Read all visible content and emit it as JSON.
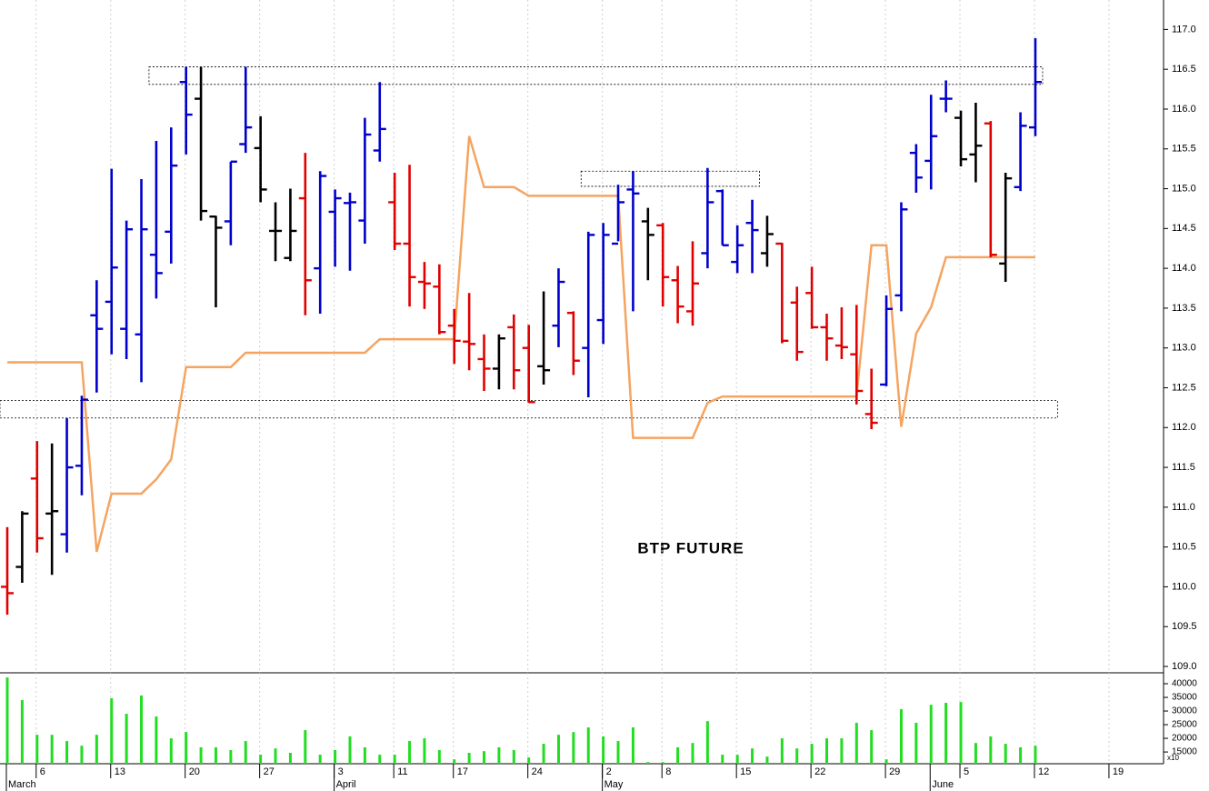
{
  "chart_data": {
    "type": "ohlc",
    "annotation": "BTP FUTURE",
    "grid": "x",
    "categories": [
      null,
      null,
      "6",
      null,
      null,
      null,
      null,
      "13",
      null,
      null,
      null,
      null,
      "20",
      null,
      null,
      null,
      null,
      "27",
      null,
      null,
      null,
      null,
      "3",
      null,
      null,
      null,
      "11",
      null,
      null,
      null,
      "17",
      null,
      null,
      null,
      null,
      "24",
      null,
      null,
      null,
      null,
      "2",
      null,
      null,
      null,
      "8",
      null,
      null,
      null,
      null,
      "15",
      null,
      null,
      null,
      null,
      "22",
      null,
      null,
      null,
      null,
      "29",
      null,
      null,
      null,
      null,
      "5",
      null,
      null,
      null,
      null,
      "12",
      null,
      null,
      null,
      null,
      "19"
    ],
    "month_labels": [
      "March",
      null,
      null,
      null,
      null,
      null,
      null,
      null,
      null,
      null,
      null,
      null,
      null,
      null,
      null,
      null,
      null,
      null,
      null,
      null,
      null,
      null,
      "April",
      null,
      null,
      null,
      null,
      null,
      null,
      null,
      null,
      null,
      null,
      null,
      null,
      null,
      null,
      null,
      null,
      null,
      "May",
      null,
      null,
      null,
      null,
      null,
      null,
      null,
      null,
      null,
      null,
      null,
      null,
      null,
      null,
      null,
      null,
      null,
      null,
      null,
      null,
      null,
      "June",
      null,
      null,
      null,
      null,
      null,
      null,
      null,
      null,
      null,
      null,
      null,
      null
    ],
    "open": [
      110.0,
      110.25,
      111.36,
      110.92,
      110.66,
      111.52,
      113.41,
      113.58,
      113.24,
      113.17,
      114.17,
      114.46,
      116.34,
      116.13,
      114.65,
      114.59,
      115.56,
      115.51,
      114.47,
      114.13,
      114.88,
      114.0,
      114.71,
      114.82,
      114.6,
      115.48,
      114.83,
      114.31,
      113.83,
      113.77,
      113.28,
      113.08,
      112.86,
      112.74,
      113.26,
      113.0,
      112.77,
      113.28,
      113.44,
      113.0,
      113.35,
      114.31,
      114.99,
      114.59,
      114.54,
      113.85,
      113.46,
      114.19,
      114.97,
      114.08,
      114.57,
      114.19,
      114.31,
      113.57,
      113.69,
      113.26,
      113.03,
      112.92,
      112.17,
      112.54,
      113.66,
      115.45,
      115.35,
      116.13,
      115.89,
      115.43,
      115.82,
      114.06,
      115.02,
      115.77,
      null,
      null,
      null,
      null,
      null
    ],
    "high": [
      110.75,
      110.95,
      111.83,
      111.8,
      112.12,
      112.4,
      113.85,
      115.25,
      114.6,
      115.12,
      115.6,
      115.77,
      116.53,
      116.53,
      114.66,
      115.34,
      116.53,
      115.91,
      114.83,
      115.0,
      115.45,
      115.22,
      114.99,
      114.95,
      115.89,
      116.34,
      115.2,
      115.3,
      114.08,
      114.05,
      113.49,
      113.69,
      113.17,
      113.17,
      113.42,
      113.29,
      113.71,
      114.0,
      113.46,
      114.46,
      114.57,
      115.05,
      115.22,
      114.76,
      114.57,
      114.03,
      114.34,
      115.26,
      114.99,
      114.54,
      114.86,
      114.66,
      114.32,
      113.77,
      114.02,
      113.43,
      113.51,
      113.54,
      112.74,
      113.66,
      114.83,
      115.56,
      116.18,
      116.36,
      115.98,
      116.08,
      115.85,
      115.2,
      115.96,
      116.89,
      null,
      null,
      null,
      null,
      null
    ],
    "low": [
      109.65,
      110.05,
      110.43,
      110.15,
      110.43,
      111.15,
      112.44,
      112.92,
      112.86,
      112.57,
      113.62,
      114.06,
      115.43,
      114.6,
      113.51,
      114.29,
      115.45,
      114.83,
      114.09,
      114.09,
      113.41,
      113.43,
      114.02,
      113.97,
      114.31,
      115.34,
      114.23,
      113.52,
      113.49,
      113.17,
      112.8,
      112.72,
      112.46,
      112.48,
      112.48,
      112.31,
      112.54,
      113.01,
      112.66,
      112.38,
      113.05,
      114.34,
      113.46,
      113.85,
      113.52,
      113.31,
      113.28,
      114.0,
      114.29,
      113.94,
      113.94,
      114.02,
      113.06,
      112.84,
      113.24,
      112.84,
      112.86,
      112.29,
      111.98,
      112.52,
      113.46,
      114.95,
      114.99,
      115.96,
      115.28,
      115.08,
      114.14,
      113.83,
      114.97,
      115.66,
      null,
      null,
      null,
      null,
      null
    ],
    "close": [
      109.92,
      110.92,
      110.61,
      110.95,
      111.5,
      112.35,
      113.24,
      114.01,
      114.49,
      114.49,
      113.94,
      115.29,
      115.93,
      114.72,
      114.51,
      115.34,
      115.77,
      114.99,
      114.47,
      114.47,
      113.85,
      115.16,
      114.88,
      114.83,
      115.68,
      115.75,
      114.31,
      113.89,
      113.81,
      113.2,
      113.09,
      113.05,
      112.74,
      113.12,
      112.72,
      112.32,
      112.72,
      113.83,
      112.84,
      114.42,
      114.42,
      114.83,
      114.94,
      114.42,
      113.89,
      113.52,
      113.81,
      114.83,
      114.29,
      114.29,
      114.48,
      114.43,
      113.09,
      112.95,
      113.26,
      113.12,
      113.01,
      112.46,
      112.06,
      113.49,
      114.74,
      115.14,
      115.66,
      116.13,
      115.37,
      115.54,
      114.17,
      115.13,
      115.79,
      116.34,
      null,
      null,
      null,
      null,
      null
    ],
    "bar_colors": [
      "#e00000",
      "#000000",
      "#e00000",
      "#000000",
      "#0000cc",
      "#0000cc",
      "#0000cc",
      "#0000cc",
      "#0000cc",
      "#0000cc",
      "#0000cc",
      "#0000cc",
      "#0000cc",
      "#000000",
      "#000000",
      "#0000cc",
      "#0000cc",
      "#000000",
      "#000000",
      "#000000",
      "#e00000",
      "#0000cc",
      "#0000cc",
      "#0000cc",
      "#0000cc",
      "#0000cc",
      "#e00000",
      "#e00000",
      "#e00000",
      "#e00000",
      "#e00000",
      "#e00000",
      "#e00000",
      "#000000",
      "#e00000",
      "#e00000",
      "#000000",
      "#0000cc",
      "#e00000",
      "#0000cc",
      "#0000cc",
      "#0000cc",
      "#0000cc",
      "#000000",
      "#e00000",
      "#e00000",
      "#e00000",
      "#0000cc",
      "#0000cc",
      "#0000cc",
      "#0000cc",
      "#000000",
      "#e00000",
      "#e00000",
      "#e00000",
      "#e00000",
      "#e00000",
      "#e00000",
      "#e00000",
      "#0000cc",
      "#0000cc",
      "#0000cc",
      "#0000cc",
      "#0000cc",
      "#000000",
      "#000000",
      "#e00000",
      "#000000",
      "#0000cc",
      "#0000cc",
      null,
      null,
      null,
      null,
      null
    ],
    "overlay": {
      "type": "line",
      "color": "#f5a460",
      "values": [
        112.82,
        112.82,
        112.82,
        112.82,
        112.82,
        112.82,
        110.44,
        111.17,
        111.17,
        111.17,
        111.35,
        111.6,
        112.76,
        112.76,
        112.76,
        112.76,
        112.94,
        112.94,
        112.94,
        112.94,
        112.94,
        112.94,
        112.94,
        112.94,
        112.94,
        113.11,
        113.11,
        113.11,
        113.11,
        113.11,
        113.11,
        115.66,
        115.02,
        115.02,
        115.02,
        114.91,
        114.91,
        114.91,
        114.91,
        114.91,
        114.91,
        114.91,
        111.87,
        111.87,
        111.87,
        111.87,
        111.87,
        112.31,
        112.39,
        112.39,
        112.39,
        112.39,
        112.39,
        112.39,
        112.39,
        112.39,
        112.39,
        112.39,
        114.29,
        114.29,
        112.01,
        113.18,
        113.51,
        114.14,
        114.14,
        114.14,
        114.14,
        114.14,
        114.14,
        114.14,
        null,
        null,
        null,
        null,
        null
      ]
    },
    "zones": [
      {
        "start": 10,
        "end": 69,
        "low": 116.31,
        "high": 116.53
      },
      {
        "start": 39,
        "end": 50,
        "low": 115.03,
        "high": 115.22
      },
      {
        "start": 0,
        "end": 70,
        "low": 112.12,
        "high": 112.34
      }
    ],
    "ylim": [
      108.92,
      117.37
    ],
    "yticks": [
      {
        "value": 109,
        "label": "109.0"
      },
      109.5,
      {
        "value": 110,
        "label": "110.0"
      },
      110.5,
      {
        "value": 111,
        "label": "111.0"
      },
      111.5,
      {
        "value": 112,
        "label": "112.0"
      },
      112.5,
      {
        "value": 113,
        "label": "113.0"
      },
      113.5,
      {
        "value": 114,
        "label": "114.0"
      },
      114.5,
      {
        "value": 115,
        "label": "115.0"
      },
      115.5,
      {
        "value": 116,
        "label": "116.0"
      },
      116.5,
      {
        "value": 117,
        "label": "117.0"
      }
    ],
    "volume": {
      "type": "bar",
      "color": "#22dd22",
      "unit_label": "x10",
      "values": [
        42300,
        34000,
        21300,
        21300,
        19000,
        17300,
        21300,
        34700,
        29000,
        35700,
        28000,
        20000,
        22300,
        16700,
        16700,
        15700,
        19000,
        14000,
        16300,
        14700,
        23000,
        14000,
        15700,
        20700,
        16700,
        14000,
        14000,
        19000,
        20000,
        15700,
        12300,
        14700,
        15300,
        16700,
        15700,
        13000,
        18000,
        21300,
        22300,
        24000,
        20700,
        19000,
        24000,
        11300,
        11300,
        16700,
        18300,
        26300,
        14000,
        14000,
        16300,
        13300,
        20000,
        16300,
        18000,
        20000,
        20000,
        25700,
        23000,
        12300,
        30700,
        25700,
        32300,
        33000,
        33300,
        18300,
        20700,
        18000,
        16700,
        17300,
        null,
        null,
        null,
        null,
        null
      ],
      "ylim": [
        10700,
        44000
      ],
      "yticks": [
        40000,
        35000,
        30000,
        25000,
        20000,
        15000
      ]
    }
  }
}
